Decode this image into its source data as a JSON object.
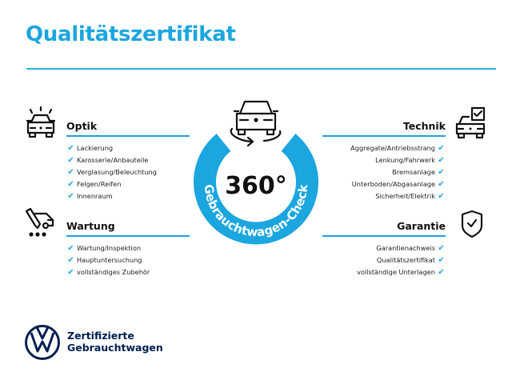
{
  "title": "Qualitätszertifikat",
  "center": {
    "value": "360°",
    "ring_text": "Gebrauchtwagen-Check",
    "icon": "car-360-rotation-icon"
  },
  "sections": {
    "optik": {
      "heading": "Optik",
      "icon": "car-lights-icon",
      "items": [
        "Lackierung",
        "Karosserie/Anbauteile",
        "Verglasung/Beleuchtung",
        "Felgen/Reifen",
        "Innenraum"
      ]
    },
    "wartung": {
      "heading": "Wartung",
      "icon": "service-tools-icon",
      "items": [
        "Wartung/Inspektion",
        "Hauptuntersuchung",
        "vollständiges Zubehör"
      ]
    },
    "technik": {
      "heading": "Technik",
      "icon": "car-checkbox-icon",
      "items": [
        "Aggregate/Antriebsstrang",
        "Lenkung/Fahrwerk",
        "Bremsanlage",
        "Unterboden/Abgasanlage",
        "Sicherheit/Elektrik"
      ]
    },
    "garantie": {
      "heading": "Garantie",
      "icon": "shield-check-icon",
      "items": [
        "Garantienachweis",
        "Qualitätszertifikat",
        "vollständige Unterlagen"
      ]
    }
  },
  "check_mark": "✔",
  "logo": {
    "line1": "Zertifizierte",
    "line2": "Gebrauchtwagen"
  },
  "colors": {
    "accent": "#1ba6df",
    "brand_dark": "#001e50",
    "text": "#111111"
  }
}
